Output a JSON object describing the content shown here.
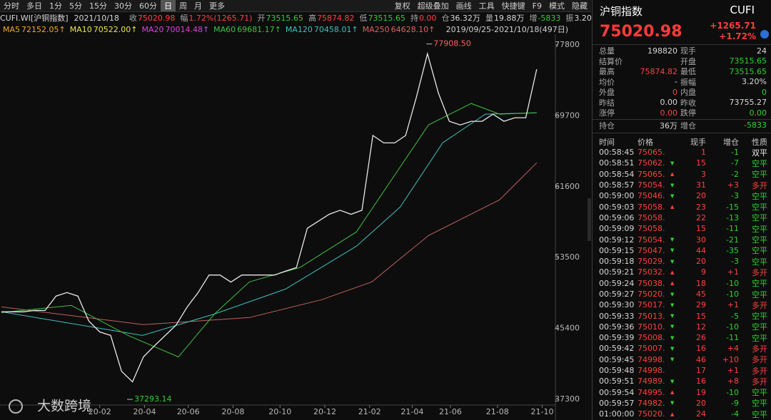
{
  "toolbar": {
    "left": [
      "分时",
      "多日",
      "1分",
      "5分",
      "15分",
      "30分",
      "60分",
      "日",
      "周",
      "月",
      "更多"
    ],
    "active": "日",
    "right": [
      "复权",
      "超级叠加",
      "画线",
      "工具",
      "快捷键",
      "F9",
      "模式",
      "隐藏"
    ]
  },
  "info": [
    {
      "text": "CUFI.WI[沪铜指数]",
      "color": "#d8d8d8"
    },
    {
      "text": "2021/10/18",
      "color": "#d8d8d8"
    },
    {
      "label": "收",
      "value": "75020.98",
      "color": "#ff4040"
    },
    {
      "label": "幅",
      "value": "1.72%(1265.71)",
      "color": "#ff4040"
    },
    {
      "label": "开",
      "value": "73515.65",
      "color": "#2fd12f"
    },
    {
      "label": "高",
      "value": "75874.82",
      "color": "#ff4040"
    },
    {
      "label": "低",
      "value": "73515.65",
      "color": "#2fd12f"
    },
    {
      "label": "持",
      "value": "0.00",
      "color": "#ff4040"
    },
    {
      "label": "仓",
      "value": "36.32万",
      "color": "#d8d8d8"
    },
    {
      "label": "量",
      "value": "19.88万",
      "color": "#d8d8d8"
    },
    {
      "label": "增",
      "value": "-5833",
      "color": "#2fd12f"
    },
    {
      "label": "振",
      "value": "3.20%",
      "color": "#d8d8d8"
    }
  ],
  "ma_legend": {
    "items": [
      {
        "name": "MA5",
        "value": "72152.05↑",
        "color": "#f5a623"
      },
      {
        "name": "MA10",
        "value": "70522.00↑",
        "color": "#e8e84a"
      },
      {
        "name": "MA20",
        "value": "70014.48↑",
        "color": "#e040e0"
      },
      {
        "name": "MA60",
        "value": "69681.17↑",
        "color": "#40c040"
      },
      {
        "name": "MA120",
        "value": "70458.01↑",
        "color": "#40c0c0"
      },
      {
        "name": "MA250",
        "value": "64628.10↑",
        "color": "#e06060"
      }
    ],
    "range": "2019/09/25-2021/10/18(497日)"
  },
  "chart": {
    "ylim": [
      37300,
      77800
    ],
    "yticks": [
      77800,
      69700,
      61600,
      53500,
      45400,
      37300
    ],
    "xlim": [
      0,
      49.5
    ],
    "xticks": [
      {
        "value": 9.0,
        "label": "20-02"
      },
      {
        "value": 13.1,
        "label": "20-04"
      },
      {
        "value": 17.1,
        "label": "20-06"
      },
      {
        "value": 21.2,
        "label": "20-08"
      },
      {
        "value": 25.5,
        "label": "20-10"
      },
      {
        "value": 29.6,
        "label": "20-12"
      },
      {
        "value": 33.7,
        "label": "21-02"
      },
      {
        "value": 37.6,
        "label": "21-04"
      },
      {
        "value": 41.1,
        "label": "21-06"
      },
      {
        "value": 45.4,
        "label": "21-08"
      },
      {
        "value": 49.5,
        "label": "21-10"
      }
    ],
    "series": [
      {
        "color": "#e8e8e8",
        "x": [
          0,
          1,
          2,
          3,
          4,
          5,
          6,
          7,
          8,
          9,
          10,
          11,
          12,
          13,
          14,
          15,
          16,
          17,
          18,
          19,
          20,
          21,
          22,
          23,
          24,
          25,
          26,
          27,
          28,
          29,
          30,
          31,
          32,
          33,
          34,
          35,
          36,
          37,
          38,
          39,
          40,
          41,
          42,
          43,
          44,
          45,
          46,
          47,
          48,
          49
        ],
        "values": [
          47300,
          47300,
          47300,
          47450,
          47450,
          49100,
          49500,
          49100,
          46250,
          45000,
          44600,
          40500,
          39300,
          42150,
          43400,
          44600,
          45800,
          47850,
          49500,
          51500,
          51500,
          50700,
          51500,
          51500,
          51500,
          51500,
          51950,
          52350,
          56850,
          57650,
          58450,
          58900,
          58450,
          58900,
          67450,
          66600,
          66600,
          67450,
          71900,
          76800,
          72300,
          69070,
          68660,
          69070,
          69070,
          69890,
          69070,
          69480,
          69480,
          75020
        ]
      },
      {
        "color": "#40c040",
        "x": [
          0,
          6.4,
          11.6,
          16.2,
          19.5,
          22.7,
          27.3,
          32.5,
          35.8,
          39.1,
          43,
          45.6,
          49
        ],
        "values": [
          47210,
          48030,
          44600,
          42150,
          47050,
          50720,
          52350,
          56430,
          62550,
          68660,
          71110,
          69890,
          70050
        ]
      },
      {
        "color": "#40c0c0",
        "x": [
          0,
          12.9,
          19.5,
          26,
          32.5,
          36.5,
          40.4,
          44.3,
          49
        ],
        "values": [
          47300,
          44600,
          47050,
          49900,
          54800,
          59280,
          66630,
          69890,
          70050
        ]
      },
      {
        "color": "#c06060",
        "x": [
          0,
          13,
          22.7,
          29.3,
          33.9,
          39.1,
          45.6,
          49
        ],
        "values": [
          47860,
          45830,
          46650,
          48680,
          50720,
          56020,
          60100,
          64330
        ]
      }
    ],
    "annotations": [
      {
        "text": "77908.50",
        "x": 38.9,
        "y": 77908.5,
        "color": "#ff6060"
      },
      {
        "text": "37293.14",
        "x": 11.5,
        "y": 37293.14,
        "color": "#2fd12f"
      }
    ]
  },
  "watermark": "大数跨境",
  "quote": {
    "name": "沪铜指数",
    "code": "CUFI",
    "price": "75020.98",
    "change": "+1265.71",
    "pct": "+1.72%"
  },
  "stats": {
    "rows": [
      [
        {
          "label": "总量",
          "value": "198820",
          "color": "#d8d8d8"
        },
        {
          "label": "现手",
          "value": "24",
          "color": "#d8d8d8"
        }
      ],
      [
        {
          "label": "结算价"
        },
        {
          "label": "开盘",
          "value": "73515.65",
          "color": "#2fd12f"
        }
      ],
      [
        {
          "label": "最高",
          "value": "75874.82",
          "color": "#ff4040"
        },
        {
          "label": "最低",
          "value": "73515.65",
          "color": "#2fd12f"
        }
      ],
      [
        {
          "label": "均价",
          "value": "-",
          "color": "#d8d8d8"
        },
        {
          "label": "振幅",
          "value": "3.20%",
          "color": "#d8d8d8"
        }
      ],
      [
        {
          "label": "外盘",
          "value": "0",
          "color": "#ff4040"
        },
        {
          "label": "内盘",
          "value": "0",
          "color": "#2fd12f"
        }
      ],
      [
        {
          "label": "昨结",
          "value": "0.00",
          "color": "#d8d8d8"
        },
        {
          "label": "昨收",
          "value": "73755.27",
          "color": "#d8d8d8"
        }
      ],
      [
        {
          "label": "涨停",
          "value": "0.00",
          "color": "#ff4040"
        },
        {
          "label": "跌停",
          "value": "0.00",
          "color": "#2fd12f"
        }
      ]
    ],
    "open_interest": [
      {
        "label": "持仓",
        "value": "36万",
        "color": "#d8d8d8"
      },
      {
        "label": "增仓",
        "value": "-5833",
        "color": "#2fd12f"
      }
    ]
  },
  "trades": {
    "header": [
      "时间",
      "价格",
      "现手",
      "增仓",
      "性质"
    ],
    "rows": [
      [
        "00:58:45",
        "75065.",
        "1",
        "-1",
        "双平"
      ],
      [
        "00:58:51",
        "75062.",
        "15",
        "-7",
        "空平"
      ],
      [
        "00:58:54",
        "75065.",
        "3",
        "-2",
        "空平"
      ],
      [
        "00:58:57",
        "75054.",
        "31",
        "+3",
        "多开"
      ],
      [
        "00:59:00",
        "75046.",
        "20",
        "-3",
        "空平"
      ],
      [
        "00:59:03",
        "75058.",
        "23",
        "-15",
        "空平"
      ],
      [
        "00:59:06",
        "75058.",
        "22",
        "-13",
        "空平"
      ],
      [
        "00:59:09",
        "75058.",
        "15",
        "-11",
        "空平"
      ],
      [
        "00:59:12",
        "75054.",
        "30",
        "-21",
        "空平"
      ],
      [
        "00:59:15",
        "75047.",
        "44",
        "-35",
        "空平"
      ],
      [
        "00:59:18",
        "75029.",
        "20",
        "-3",
        "空平"
      ],
      [
        "00:59:21",
        "75032.",
        "9",
        "+1",
        "多开"
      ],
      [
        "00:59:24",
        "75038.",
        "18",
        "-10",
        "空平"
      ],
      [
        "00:59:27",
        "75020.",
        "45",
        "-10",
        "空平"
      ],
      [
        "00:59:30",
        "75017.",
        "29",
        "+1",
        "多开"
      ],
      [
        "00:59:33",
        "75013.",
        "15",
        "-5",
        "空平"
      ],
      [
        "00:59:36",
        "75010.",
        "12",
        "-10",
        "空平"
      ],
      [
        "00:59:39",
        "75008.",
        "26",
        "-11",
        "空平"
      ],
      [
        "00:59:42",
        "75007.",
        "16",
        "+4",
        "多开"
      ],
      [
        "00:59:45",
        "74998.",
        "46",
        "+10",
        "多开"
      ],
      [
        "00:59:48",
        "74998.",
        "17",
        "+1",
        "多开"
      ],
      [
        "00:59:51",
        "74989.",
        "16",
        "+8",
        "多开"
      ],
      [
        "00:59:54",
        "74995.",
        "19",
        "-10",
        "空平"
      ],
      [
        "00:59:57",
        "74982.",
        "20",
        "-9",
        "空平"
      ],
      [
        "01:00:00",
        "75020.",
        "24",
        "-4",
        "空平"
      ]
    ]
  }
}
